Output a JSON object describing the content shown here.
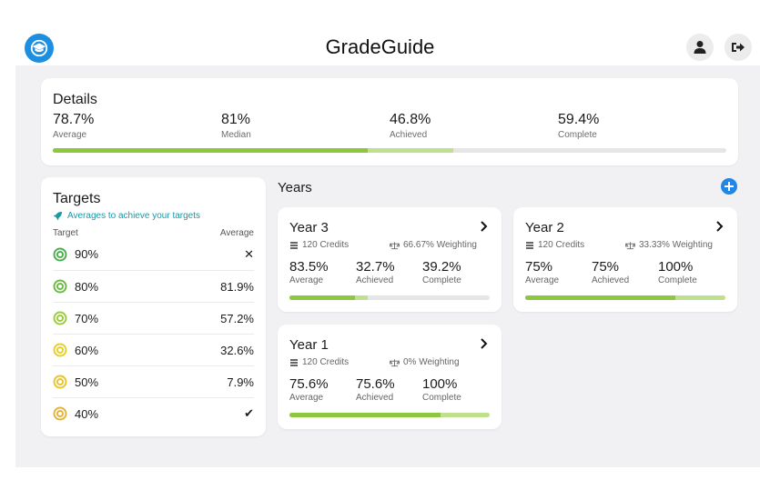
{
  "app": {
    "title": "GradeGuide"
  },
  "icons": {
    "logo": "graduation-cap-icon",
    "user": "user-icon",
    "logout": "logout-icon",
    "add": "plus-icon",
    "chevron": "chevron-right-icon",
    "credits": "stack-icon",
    "weighting": "scale-icon",
    "rocket": "rocket-icon"
  },
  "colors": {
    "accent": "#1d8fe0",
    "progress_dark": "#8dc63f",
    "progress_light": "#bfe08c",
    "target_green": "#4caf50",
    "target_lime": "#9ccc3c",
    "target_yellow": "#e6cf2a",
    "target_amber": "#e3b43a"
  },
  "details": {
    "title": "Details",
    "stats": [
      {
        "value": "78.7%",
        "label": "Average"
      },
      {
        "value": "81%",
        "label": "Median"
      },
      {
        "value": "46.8%",
        "label": "Achieved"
      },
      {
        "value": "59.4%",
        "label": "Complete"
      }
    ],
    "progress": {
      "achieved": 0.468,
      "complete": 0.594
    }
  },
  "targets": {
    "title": "Targets",
    "subtitle": "Averages to achieve your targets",
    "col_target": "Target",
    "col_average": "Average",
    "rows": [
      {
        "target": "90%",
        "average": "✕",
        "color": "#4caf50"
      },
      {
        "target": "80%",
        "average": "81.9%",
        "color": "#6dbb45"
      },
      {
        "target": "70%",
        "average": "57.2%",
        "color": "#9ccc3c"
      },
      {
        "target": "60%",
        "average": "32.6%",
        "color": "#e6cf2a"
      },
      {
        "target": "50%",
        "average": "7.9%",
        "color": "#e8c52e"
      },
      {
        "target": "40%",
        "average": "✔",
        "color": "#e3b43a"
      }
    ]
  },
  "years": {
    "title": "Years",
    "items": [
      {
        "name": "Year 3",
        "credits": "120 Credits",
        "weighting": "66.67% Weighting",
        "average": "83.5%",
        "achieved": "32.7%",
        "complete": "39.2%",
        "average_label": "Average",
        "achieved_label": "Achieved",
        "complete_label": "Complete",
        "progress": {
          "achieved": 0.327,
          "complete": 0.392
        }
      },
      {
        "name": "Year 2",
        "credits": "120 Credits",
        "weighting": "33.33% Weighting",
        "average": "75%",
        "achieved": "75%",
        "complete": "100%",
        "average_label": "Average",
        "achieved_label": "Achieved",
        "complete_label": "Complete",
        "progress": {
          "achieved": 0.75,
          "complete": 1.0
        }
      },
      {
        "name": "Year 1",
        "credits": "120 Credits",
        "weighting": "0% Weighting",
        "average": "75.6%",
        "achieved": "75.6%",
        "complete": "100%",
        "average_label": "Average",
        "achieved_label": "Achieved",
        "complete_label": "Complete",
        "progress": {
          "achieved": 0.756,
          "complete": 1.0
        }
      }
    ]
  }
}
